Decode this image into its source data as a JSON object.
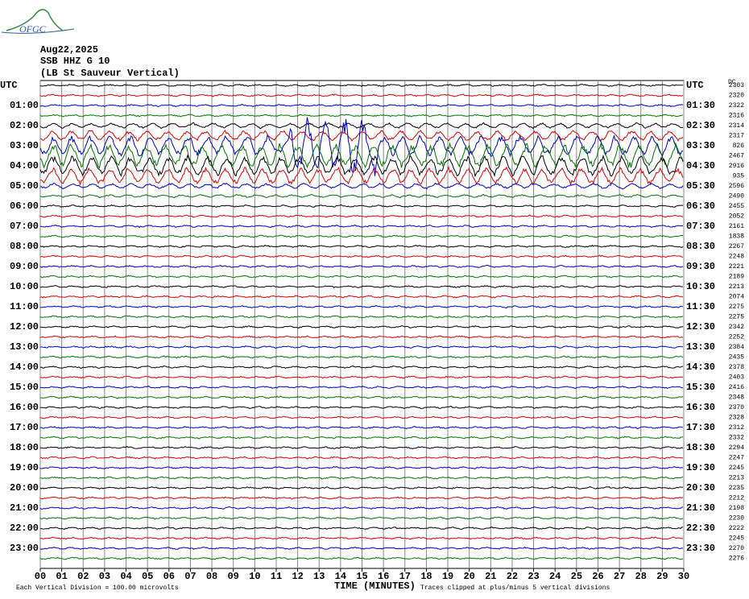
{
  "header": {
    "logo": "OFGC",
    "date": "Aug22,2025",
    "station": "SSB HHZ G 10",
    "location": "(LB St Sauveur Vertical)"
  },
  "left_axis": {
    "title": "UTC",
    "labels": [
      "01:00",
      "02:00",
      "03:00",
      "04:00",
      "05:00",
      "06:00",
      "07:00",
      "08:00",
      "09:00",
      "10:00",
      "11:00",
      "12:00",
      "13:00",
      "14:00",
      "15:00",
      "16:00",
      "17:00",
      "18:00",
      "19:00",
      "20:00",
      "21:00",
      "22:00",
      "23:00"
    ]
  },
  "right_axis": {
    "title": "UTC",
    "labels": [
      "01:30",
      "02:30",
      "03:30",
      "04:30",
      "05:30",
      "06:30",
      "07:30",
      "08:30",
      "09:30",
      "10:30",
      "11:30",
      "12:30",
      "13:30",
      "14:30",
      "15:30",
      "16:30",
      "17:30",
      "18:30",
      "19:30",
      "20:30",
      "21:30",
      "22:30",
      "23:30"
    ]
  },
  "offsets": {
    "title": "DC",
    "values": [
      "2303",
      "2320",
      "2322",
      "2316",
      "2314",
      "2317",
      "826",
      "2467",
      "2916",
      "935",
      "2596",
      "2490",
      "2455",
      "2052",
      "2161",
      "1838",
      "2267",
      "2248",
      "2221",
      "2189",
      "2213",
      "2074",
      "2275",
      "2275",
      "2342",
      "2252",
      "2384",
      "2435",
      "2378",
      "2403",
      "2416",
      "2348",
      "2370",
      "2328",
      "2312",
      "2332",
      "2294",
      "2247",
      "2245",
      "2213",
      "2235",
      "2212",
      "2198",
      "2230",
      "2222",
      "2245",
      "2270",
      "2276"
    ]
  },
  "x_axis": {
    "title": "TIME (MINUTES)",
    "labels": [
      "00",
      "01",
      "02",
      "03",
      "04",
      "05",
      "06",
      "07",
      "08",
      "09",
      "10",
      "11",
      "12",
      "13",
      "14",
      "15",
      "16",
      "17",
      "18",
      "19",
      "20",
      "21",
      "22",
      "23",
      "24",
      "25",
      "26",
      "27",
      "28",
      "29",
      "30"
    ]
  },
  "footer": {
    "scale": "Each Vertical Division =  100.00 microvolts",
    "clip": "Traces clipped at plus/minus 5 vertical divisions"
  }
}
